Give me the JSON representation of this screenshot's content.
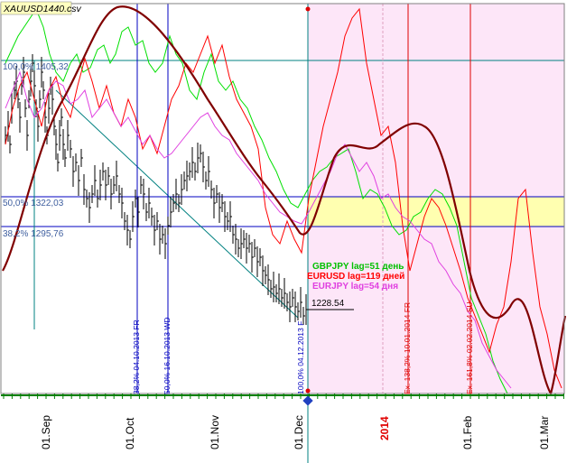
{
  "chart_data": {
    "type": "line",
    "title": "XAUUSD1440.csv",
    "colors": {
      "background": "#ffffff",
      "plot_border": "#808080",
      "bottom_strip": "#008000",
      "future_zone": "#fde6f8",
      "fib_band": "#ffffb0",
      "price_bars": "#000000",
      "cycle_line": "#800000",
      "gbpjpy": "#00e000",
      "eurusd": "#ff0000",
      "eurjpy": "#e040e0",
      "teal": "#008080",
      "blue": "#0000c0",
      "red": "#e00000"
    },
    "x_tick_labels": [
      "01.Sep",
      "01.Oct",
      "01.Nov",
      "01.Dec",
      "2014",
      "01.Feb",
      "01.Mar"
    ],
    "fib_levels": [
      {
        "label": "100,0% 1405,32",
        "value": 1405.32
      },
      {
        "label": "50,0% 1322,03",
        "value": 1322.03
      },
      {
        "label": "38,2% 1295,76",
        "value": 1295.76
      }
    ],
    "last_price_label": "1228.54",
    "vertical_markers": [
      {
        "label": "38,2% 04.10.2013 FR"
      },
      {
        "label": "50,0% 16.10.2013 WD"
      },
      {
        "label": "100,0% 04.12.2013 F"
      },
      {
        "label": "Ex. 138,2% 10.01.2014 FR"
      },
      {
        "label": "Ex. 161,8% 02.02.2014 SU"
      }
    ],
    "series": [
      {
        "name": "GBPJPY lag=51 день",
        "color": "#00e000"
      },
      {
        "name": "EURUSD lag=119 дней",
        "color": "#ff0000"
      },
      {
        "name": "EURJPY lag=54 дня",
        "color": "#e040e0"
      }
    ]
  }
}
